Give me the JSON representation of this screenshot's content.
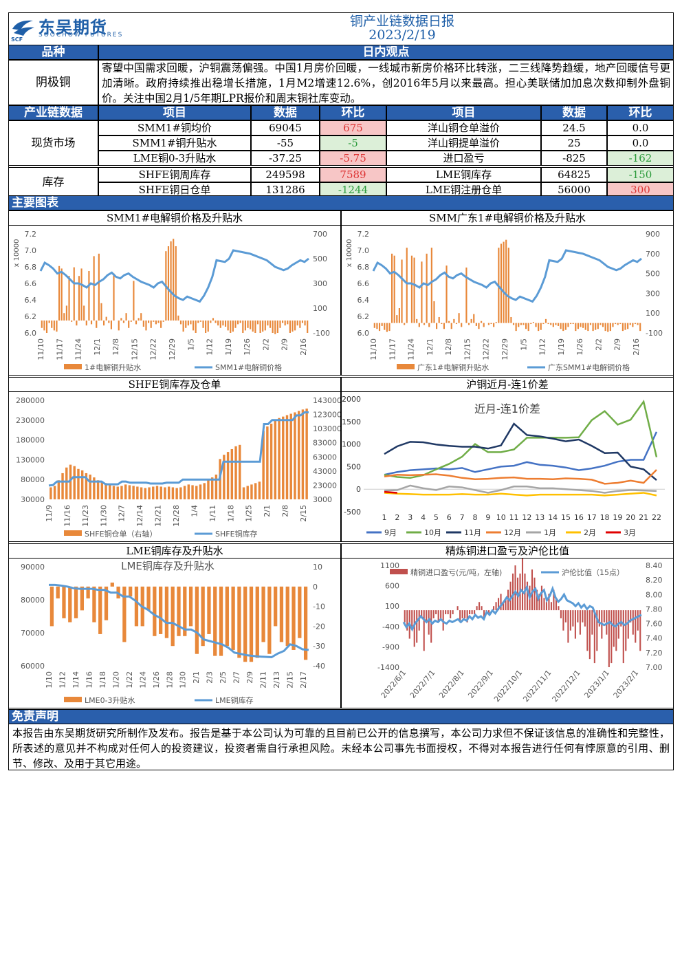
{
  "header": {
    "logo_cn": "东吴期货",
    "logo_en": "SOOCHOW FUTURES",
    "logo_mark": "SCF",
    "title": "铜产业链数据日报",
    "date": "2023/2/19"
  },
  "colors": {
    "header_bg": "#2a5fac",
    "red_bg": "#f7c6c6",
    "green_bg": "#dcefd8",
    "bar": "#e8883a",
    "line": "#5b9bd5"
  },
  "view_section": {
    "col_variety": "品种",
    "col_view": "日内观点",
    "variety": "阴极铜",
    "text": "寄望中国需求回暖，沪铜震荡偏强。中国1月房价回暖，一线城市新房价格环比转涨，二三线降势趋缓，地产回暖信号更加清晰。政府持续推出稳增长措施，1月M2增速12.6%，创2016年5月以来最高。担心美联储加加息次数抑制外盘铜价。关注中国2月1/5年期LPR报价和周末铜社库变动。"
  },
  "data_table": {
    "headers": [
      "产业链数据",
      "项目",
      "数据",
      "环比",
      "项目",
      "数据",
      "环比"
    ],
    "groups": [
      {
        "name": "现货市场",
        "rows": [
          {
            "item1": "SMM1#铜均价",
            "val1": "69045",
            "chg1": "675",
            "c1": "red",
            "item2": "洋山铜仓单溢价",
            "val2": "24.5",
            "chg2": "0.0",
            "c2": ""
          },
          {
            "item1": "SMM1#铜升贴水",
            "val1": "-55",
            "chg1": "-5",
            "c1": "green",
            "item2": "洋山铜提单溢价",
            "val2": "25",
            "chg2": "0.0",
            "c2": ""
          },
          {
            "item1": "LME铜0-3升贴水",
            "val1": "-37.25",
            "chg1": "-5.75",
            "c1": "red",
            "item2": "进口盈亏",
            "val2": "-825",
            "chg2": "-162",
            "c2": "green"
          }
        ]
      },
      {
        "name": "库存",
        "rows": [
          {
            "item1": "SHFE铜周库存",
            "val1": "249598",
            "chg1": "7589",
            "c1": "red",
            "item2": "LME铜库存",
            "val2": "64825",
            "chg2": "-150",
            "c2": "green"
          },
          {
            "item1": "SHFE铜日仓单",
            "val1": "131286",
            "chg1": "-1244",
            "c1": "green",
            "item2": "LME铜注册仓单",
            "val2": "56000",
            "chg2": "300",
            "c2": "red"
          }
        ]
      }
    ]
  },
  "charts_section_title": "主要图表",
  "chart_data": [
    {
      "type": "bar",
      "title": "SMM1#电解铜价格及升贴水",
      "left_unit": "x 10000",
      "left_ticks": [
        "7.2",
        "7.0",
        "6.8",
        "6.6",
        "6.4",
        "6.2",
        "6.0"
      ],
      "right_ticks": [
        "700",
        "500",
        "300",
        "100",
        "-100"
      ],
      "x_ticks": [
        "11/10",
        "11/17",
        "11/24",
        "12/1",
        "12/8",
        "12/15",
        "12/22",
        "12/29",
        "1/5",
        "1/12",
        "1/19",
        "1/26",
        "2/2",
        "2/9",
        "2/16"
      ],
      "legend": [
        "1#电解铜升贴水",
        "SMM1#电解铜价格"
      ],
      "bars": [
        -60,
        -80,
        -100,
        -20,
        -60,
        -80,
        -90,
        440,
        420,
        60,
        120,
        360,
        -10,
        430,
        -40,
        360,
        420,
        120,
        -40,
        400,
        -30,
        520,
        -60,
        540,
        140,
        -40,
        30,
        -20,
        -70,
        380,
        0,
        -80,
        20,
        -20,
        60,
        -60,
        -10,
        320,
        -30,
        20,
        60,
        -50,
        -80,
        -20,
        -60,
        -10,
        -30,
        -20,
        -60,
        -10,
        560,
        600,
        640,
        660,
        600,
        40,
        -30,
        -90,
        -60,
        -40,
        -30,
        -80,
        -100,
        -20,
        -10,
        -60,
        -100,
        -90,
        -20,
        20,
        -20,
        -40,
        -60,
        -40,
        -50,
        -80,
        -100,
        -90,
        -60,
        -30,
        -20,
        -100,
        -80,
        -60,
        -70,
        -90,
        -100,
        -30,
        -100,
        -90,
        -80,
        -40,
        -60,
        -100,
        -110,
        -100,
        -60,
        -20,
        -40,
        -30,
        -100,
        -90,
        -80,
        -40,
        -60,
        -20,
        -40,
        -100
      ],
      "line": [
        6.75,
        6.85,
        6.82,
        6.78,
        6.72,
        6.74,
        6.7,
        6.65,
        6.6,
        6.6,
        6.58,
        6.55,
        6.6,
        6.58,
        6.62,
        6.65,
        6.7,
        6.73,
        6.68,
        6.66,
        6.7,
        6.72,
        6.68,
        6.65,
        6.62,
        6.6,
        6.58,
        6.55,
        6.6,
        6.62,
        6.56,
        6.5,
        6.45,
        6.42,
        6.4,
        6.44,
        6.42,
        6.4,
        6.38,
        6.45,
        6.55,
        6.68,
        6.88,
        6.87,
        6.86,
        6.9,
        7.0,
        6.99,
        6.98,
        6.97,
        6.96,
        6.94,
        6.92,
        6.9,
        6.88,
        6.84,
        6.8,
        6.78,
        6.76,
        6.78,
        6.82,
        6.85,
        6.88,
        6.86,
        6.9
      ]
    },
    {
      "type": "bar",
      "title": "SMM广东1#电解铜价格及升贴水",
      "left_unit": "x 10000",
      "left_ticks": [
        "7.2",
        "7.0",
        "6.8",
        "6.6",
        "6.4",
        "6.2",
        "6.0"
      ],
      "right_ticks": [
        "900",
        "700",
        "500",
        "300",
        "100",
        "-100"
      ],
      "x_ticks": [
        "11/10",
        "11/17",
        "11/24",
        "12/1",
        "12/8",
        "12/15",
        "12/22",
        "12/29",
        "1/5",
        "1/12",
        "1/19",
        "1/26",
        "2/2",
        "2/9",
        "2/16"
      ],
      "legend": [
        "广东1#电解铜升贴水",
        "广东SMM1#电解铜价格"
      ],
      "bars": [
        -50,
        -60,
        -80,
        -30,
        -70,
        -90,
        -80,
        700,
        680,
        80,
        150,
        640,
        -20,
        760,
        0,
        680,
        660,
        40,
        -40,
        620,
        -20,
        700,
        -40,
        760,
        220,
        -60,
        60,
        -10,
        -60,
        580,
        20,
        -60,
        40,
        -10,
        100,
        -40,
        0,
        560,
        -20,
        40,
        90,
        -30,
        -60,
        20,
        -40,
        0,
        -20,
        -10,
        -40,
        10,
        760,
        800,
        820,
        840,
        760,
        60,
        -20,
        -80,
        -40,
        -20,
        -20,
        -60,
        -80,
        -10,
        10,
        -40,
        -80,
        -70,
        -10,
        40,
        -10,
        -20,
        -40,
        -20,
        -30,
        -60,
        -80,
        -70,
        -40,
        -10,
        -10,
        -80,
        -60,
        -40,
        -50,
        -70,
        -80,
        -20,
        -80,
        -70,
        -60,
        -20,
        -40,
        -80,
        -90,
        -80,
        -40,
        -10,
        -20,
        -10,
        -80,
        -70,
        -60,
        -20,
        -40,
        -10,
        -20,
        -80
      ],
      "line": [
        6.75,
        6.85,
        6.82,
        6.78,
        6.72,
        6.74,
        6.7,
        6.65,
        6.6,
        6.6,
        6.58,
        6.55,
        6.6,
        6.58,
        6.62,
        6.65,
        6.7,
        6.73,
        6.68,
        6.66,
        6.7,
        6.72,
        6.68,
        6.65,
        6.62,
        6.6,
        6.58,
        6.55,
        6.6,
        6.62,
        6.56,
        6.5,
        6.45,
        6.42,
        6.4,
        6.44,
        6.42,
        6.4,
        6.38,
        6.45,
        6.55,
        6.68,
        6.88,
        6.87,
        6.86,
        6.9,
        7.0,
        6.99,
        6.98,
        6.97,
        6.96,
        6.94,
        6.92,
        6.9,
        6.88,
        6.84,
        6.8,
        6.78,
        6.76,
        6.78,
        6.82,
        6.85,
        6.88,
        6.86,
        6.9
      ]
    },
    {
      "type": "bar",
      "title": "SHFE铜库存及仓单",
      "left_ticks": [
        "280000",
        "230000",
        "180000",
        "130000",
        "80000",
        "30000"
      ],
      "right_ticks": [
        "143000",
        "123000",
        "103000",
        "83000",
        "63000",
        "43000",
        "23000",
        "3000"
      ],
      "x_ticks": [
        "11/9",
        "11/16",
        "11/23",
        "11/30",
        "12/7",
        "12/14",
        "12/21",
        "12/28",
        "1/4",
        "1/11",
        "1/18",
        "1/25",
        "2/1",
        "2/8",
        "2/15"
      ],
      "legend": [
        "SHFE铜仓单（右轴）",
        "SHFE铜库存"
      ],
      "bars": [
        20000,
        22000,
        30000,
        40000,
        48000,
        52000,
        50000,
        46000,
        44000,
        40000,
        38000,
        34000,
        30000,
        28000,
        26000,
        24000,
        22000,
        21000,
        22000,
        24000,
        23000,
        22000,
        21000,
        20000,
        19000,
        20000,
        21000,
        22000,
        21000,
        20000,
        21000,
        20000,
        19000,
        20000,
        22000,
        24000,
        23000,
        22000,
        24000,
        26000,
        30000,
        34000,
        38000,
        60000,
        66000,
        70000,
        74000,
        78000,
        80000,
        20000,
        22000,
        24000,
        26000,
        28000,
        100000,
        106000,
        110000,
        114000,
        118000,
        120000,
        122000,
        124000,
        126000,
        128000,
        130000,
        131286
      ],
      "line": [
        65000,
        66000,
        75000,
        75000,
        75000,
        75000,
        86000,
        86000,
        86000,
        86000,
        75000,
        75000,
        75000,
        75000,
        68000,
        68000,
        68000,
        68000,
        75000,
        75000,
        72000,
        72000,
        72000,
        72000,
        72000,
        70000,
        70000,
        70000,
        70000,
        72000,
        72000,
        72000,
        72000,
        80000,
        80000,
        80000,
        80000,
        80000,
        80000,
        80000,
        80000,
        80000,
        80000,
        125000,
        125000,
        125000,
        125000,
        125000,
        125000,
        125000,
        125000,
        125000,
        125000,
        220000,
        220000,
        230000,
        230000,
        230000,
        230000,
        230000,
        230000,
        242000,
        242000,
        249598,
        249598
      ]
    },
    {
      "type": "line",
      "title": "沪铜近月-连1价差",
      "inner_title": "近月-连1价差",
      "y_ticks": [
        "2000",
        "1500",
        "1000",
        "500",
        "0",
        "-500"
      ],
      "x_ticks": [
        "1",
        "2",
        "3",
        "4",
        "5",
        "6",
        "7",
        "8",
        "9",
        "10",
        "11",
        "12",
        "13",
        "14",
        "15",
        "16",
        "17",
        "18",
        "19",
        "20",
        "21",
        "22"
      ],
      "series": [
        {
          "name": "9月",
          "color": "#4472c4",
          "values": [
            320,
            380,
            420,
            440,
            460,
            440,
            470,
            380,
            440,
            500,
            520,
            600,
            540,
            520,
            480,
            420,
            460,
            520,
            610,
            650,
            650,
            1270
          ]
        },
        {
          "name": "10月",
          "color": "#70ad47",
          "values": [
            320,
            270,
            250,
            310,
            440,
            560,
            720,
            1000,
            820,
            820,
            880,
            1140,
            1140,
            1140,
            1140,
            1150,
            1530,
            1730,
            1430,
            1540,
            1940,
            710
          ]
        },
        {
          "name": "11月",
          "color": "#1f3864",
          "values": [
            780,
            950,
            1050,
            1040,
            990,
            960,
            940,
            940,
            900,
            970,
            1450,
            1200,
            1170,
            1120,
            1060,
            1100,
            960,
            800,
            810,
            500,
            440,
            200
          ]
        },
        {
          "name": "12月",
          "color": "#ed7d31",
          "values": [
            280,
            320,
            310,
            320,
            330,
            300,
            250,
            220,
            230,
            250,
            260,
            230,
            230,
            220,
            240,
            230,
            210,
            120,
            140,
            190,
            140,
            430
          ]
        },
        {
          "name": "1月",
          "color": "#a5a5a5",
          "values": [
            -30,
            -20,
            80,
            20,
            -20,
            60,
            40,
            -20,
            -80,
            -20,
            60,
            60,
            20,
            20,
            0,
            -20,
            -40,
            -80,
            -40,
            -20,
            -30,
            -40
          ]
        },
        {
          "name": "2月",
          "color": "#ffc000",
          "values": [
            -80,
            -100,
            -110,
            -120,
            -120,
            -120,
            -110,
            -120,
            -120,
            -100,
            -120,
            -140,
            -120,
            -120,
            -120,
            -120,
            -120,
            -140,
            -120,
            -100,
            -80,
            -140
          ]
        },
        {
          "name": "3月",
          "color": "#e00000",
          "values": [
            -60,
            -80
          ]
        }
      ]
    },
    {
      "type": "bar",
      "title": "LME铜库存及升贴水",
      "inner_title": "LME铜库存及升贴水",
      "left_ticks": [
        "90000",
        "80000",
        "70000",
        "60000"
      ],
      "right_ticks": [
        "10",
        "0",
        "-10",
        "-20",
        "-30",
        "-40"
      ],
      "x_ticks": [
        "1/10",
        "1/12",
        "1/14",
        "1/16",
        "1/18",
        "1/20",
        "1/22",
        "1/24",
        "1/26",
        "1/28",
        "1/30",
        "2/1",
        "2/3",
        "2/5",
        "2/7",
        "2/9",
        "2/11",
        "2/13",
        "2/15",
        "2/17"
      ],
      "legend": [
        "LME0-3升贴水",
        "LME铜库存"
      ],
      "bars": [
        -20,
        -6,
        -16,
        -18,
        -16,
        -12,
        -6,
        -18,
        -24,
        -17,
        2,
        -6,
        -28,
        -5,
        -20,
        -20,
        -12,
        -25,
        -24,
        -26,
        -30,
        -25,
        -25,
        -20,
        -34,
        -30,
        -24,
        -35,
        -35,
        -30,
        -32,
        -36,
        -38,
        -38,
        -36,
        -28,
        -34,
        -20,
        -28,
        -30,
        -32,
        -26,
        -37
      ],
      "line": [
        84500,
        84500,
        84300,
        84000,
        83500,
        83300,
        83300,
        83300,
        83000,
        83000,
        82200,
        82200,
        81000,
        81000,
        79700,
        78000,
        77000,
        75500,
        74500,
        73000,
        73000,
        72000,
        71000,
        71000,
        70000,
        68000,
        67500,
        67000,
        66500,
        65500,
        64000,
        63600,
        63200,
        63000,
        62800,
        62700,
        62600,
        63700,
        64500,
        66500,
        66000,
        65000,
        64825
      ]
    },
    {
      "type": "bar",
      "title": "精炼铜进口盈亏及沪伦比值",
      "left_ticks": [
        "1100",
        "600",
        "100",
        "-400",
        "-900",
        "-1400"
      ],
      "right_ticks": [
        "8.40",
        "8.20",
        "8.00",
        "7.80",
        "7.60",
        "7.40",
        "7.20",
        "7.00"
      ],
      "x_ticks": [
        "2022/6/1",
        "2022/7/1",
        "2022/8/1",
        "2022/9/1",
        "2022/10/1",
        "2022/11/1",
        "2022/12/1",
        "2023/1/1",
        "2023/2/1"
      ],
      "legend": [
        "精铜进口盈亏(元/吨，左轴)",
        "沪伦比值（15点）"
      ],
      "bars": [
        -300,
        -500,
        -700,
        -400,
        -900,
        -800,
        -500,
        -200,
        -1000,
        -300,
        -600,
        -800,
        -200,
        -100,
        -300,
        -200,
        -500,
        -100,
        -100,
        -200,
        -100,
        0,
        100,
        -300,
        -200,
        -200,
        -300,
        -100,
        -100,
        -100,
        100,
        200,
        100,
        -200,
        -100,
        -100,
        0,
        100,
        200,
        300,
        400,
        200,
        300,
        500,
        700,
        900,
        1100,
        800,
        900,
        1300,
        900,
        700,
        600,
        1000,
        800,
        500,
        400,
        600,
        300,
        200,
        400,
        200,
        500,
        300,
        100,
        -200,
        -500,
        -300,
        -800,
        -500,
        -400,
        -700,
        -300,
        -600,
        -300,
        -400,
        -1000,
        -1200,
        -600,
        -1300,
        -1000,
        -400,
        -700,
        -300,
        -600,
        -1400,
        -1300,
        -900,
        -1000,
        -700,
        -400,
        -1300,
        -1000,
        -700,
        -300,
        -600,
        -800,
        -500,
        -1000
      ],
      "line": [
        7.62,
        7.55,
        7.6,
        7.52,
        7.6,
        7.65,
        7.7,
        7.66,
        7.62,
        7.66,
        7.6,
        7.64,
        7.62,
        7.66,
        7.62,
        7.6,
        7.64,
        7.62,
        7.64,
        7.66,
        7.62,
        7.66,
        7.64,
        7.7,
        7.66,
        7.72,
        7.68,
        7.7,
        7.66,
        7.76,
        7.72,
        7.78,
        7.74,
        7.8,
        7.85,
        7.9,
        7.96,
        7.92,
        7.98,
        8.04,
        7.98,
        8.06,
        8.02,
        8.1,
        7.96,
        8.04,
        8.08,
        7.94,
        8.02,
        8.06,
        7.92,
        7.98,
        8.08,
        7.96,
        7.9,
        7.94,
        8.0,
        7.92,
        7.9,
        7.88,
        7.84,
        7.88,
        7.82,
        7.86,
        7.8,
        7.84,
        7.82,
        7.72,
        7.62,
        7.6,
        7.58,
        7.6,
        7.62,
        7.58,
        7.56,
        7.6,
        7.62,
        7.58,
        7.6,
        7.64,
        7.66,
        7.68,
        7.7,
        7.72
      ]
    }
  ],
  "disclaimer": {
    "title": "免责声明",
    "text": "本报告由东吴期货研究所制作及发布。报告是基于本公司认为可靠的且目前已公开的信息撰写，本公司力求但不保证该信息的准确性和完整性，所表述的意见并不构成对任何人的投资建议，投资者需自行承担风险。未经本公司事先书面授权，不得对本报告进行任何有悖原意的引用、删节、修改、及用于其它用途。"
  }
}
